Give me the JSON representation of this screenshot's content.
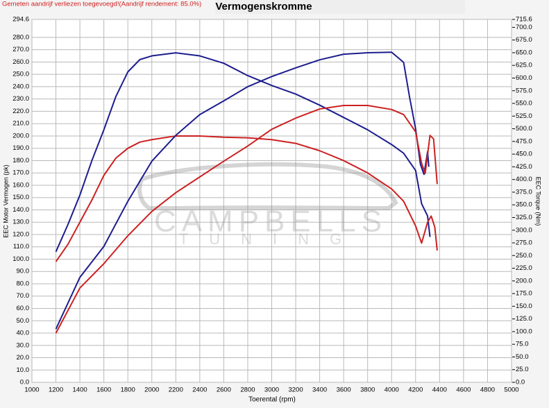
{
  "chart_data": {
    "type": "line",
    "title": "Vermogenskromme",
    "notice": "Gemeten aandrijf verliezen toegevoegd!(Aandrijf rendement: 85.0%)",
    "x_label": "Toerental (rpm)",
    "y_label": "EEC Motor Vermogen (pk)",
    "y2_label": "EEC Torque (Nm)",
    "watermark": [
      "CAMPBELLS",
      "TUNING"
    ],
    "xlim": [
      1000,
      5000
    ],
    "xticks": [
      1000,
      1200,
      1400,
      1600,
      1800,
      2000,
      2200,
      2400,
      2600,
      2800,
      3000,
      3200,
      3400,
      3600,
      3800,
      4000,
      4200,
      4400,
      4600,
      4800,
      5000
    ],
    "ylim": [
      0,
      294.6
    ],
    "yticks": [
      {
        "value": 0,
        "label": "0.0"
      },
      {
        "value": 10,
        "label": "10.0"
      },
      {
        "value": 20,
        "label": "20.0"
      },
      {
        "value": 30,
        "label": "30.0"
      },
      {
        "value": 40,
        "label": "40.0"
      },
      {
        "value": 50,
        "label": "50.0"
      },
      {
        "value": 60,
        "label": "60.0"
      },
      {
        "value": 70,
        "label": "70.0"
      },
      {
        "value": 80,
        "label": "80.0"
      },
      {
        "value": 90,
        "label": "90.0"
      },
      {
        "value": 100,
        "label": "100.0"
      },
      {
        "value": 110,
        "label": "110.0"
      },
      {
        "value": 120,
        "label": "120.0"
      },
      {
        "value": 130,
        "label": "130.0"
      },
      {
        "value": 140,
        "label": "140.0"
      },
      {
        "value": 150,
        "label": "150.0"
      },
      {
        "value": 160,
        "label": "160.0"
      },
      {
        "value": 170,
        "label": "170.0"
      },
      {
        "value": 180,
        "label": "180.0"
      },
      {
        "value": 190,
        "label": "190.0"
      },
      {
        "value": 200,
        "label": "200.0"
      },
      {
        "value": 210,
        "label": "210.0"
      },
      {
        "value": 220,
        "label": "220.0"
      },
      {
        "value": 230,
        "label": "230.0"
      },
      {
        "value": 240,
        "label": "240.0"
      },
      {
        "value": 250,
        "label": "250.0"
      },
      {
        "value": 260,
        "label": "260.0"
      },
      {
        "value": 270,
        "label": "270.0"
      },
      {
        "value": 280,
        "label": "280.0"
      },
      294.6
    ],
    "y2lim": [
      0,
      715.6
    ],
    "y2ticks": [
      {
        "value": 0,
        "label": "0.0"
      },
      {
        "value": 25,
        "label": "25.0"
      },
      {
        "value": 50,
        "label": "50.0"
      },
      {
        "value": 75,
        "label": "75.0"
      },
      {
        "value": 100,
        "label": "100.0"
      },
      {
        "value": 125,
        "label": "125.0"
      },
      {
        "value": 150,
        "label": "150.0"
      },
      {
        "value": 175,
        "label": "175.0"
      },
      {
        "value": 200,
        "label": "200.0"
      },
      {
        "value": 225,
        "label": "225.0"
      },
      {
        "value": 250,
        "label": "250.0"
      },
      {
        "value": 275,
        "label": "275.0"
      },
      {
        "value": 300,
        "label": "300.0"
      },
      {
        "value": 325,
        "label": "325.0"
      },
      {
        "value": 350,
        "label": "350.0"
      },
      {
        "value": 375,
        "label": "375.0"
      },
      {
        "value": 400,
        "label": "400.0"
      },
      {
        "value": 425,
        "label": "425.0"
      },
      {
        "value": 450,
        "label": "450.0"
      },
      {
        "value": 475,
        "label": "475.0"
      },
      {
        "value": 500,
        "label": "500.0"
      },
      {
        "value": 525,
        "label": "525.0"
      },
      {
        "value": 550,
        "label": "550.0"
      },
      {
        "value": 575,
        "label": "575.0"
      },
      {
        "value": 600,
        "label": "600.0"
      },
      {
        "value": 625,
        "label": "625.0"
      },
      {
        "value": 650,
        "label": "650.0"
      },
      {
        "value": 675,
        "label": "675.0"
      },
      {
        "value": 700,
        "label": "700.0"
      },
      715.6
    ],
    "grid": true,
    "series": [
      {
        "color": "#1c1c8e",
        "axis": "y",
        "x": [
          1200,
          1300,
          1400,
          1500,
          1600,
          1700,
          1800,
          1900,
          2000,
          2200,
          2400,
          2600,
          2800,
          3000,
          3200,
          3400,
          3600,
          3800,
          4000,
          4100,
          4200,
          4250,
          4300,
          4320
        ],
        "values": [
          106,
          128,
          152,
          180,
          205,
          232,
          252,
          262,
          265,
          267.5,
          265,
          259,
          249,
          241,
          234,
          225,
          215,
          205,
          193,
          186,
          172,
          145,
          135,
          118
        ]
      },
      {
        "color": "#cc2020",
        "axis": "y",
        "x": [
          1200,
          1300,
          1400,
          1500,
          1600,
          1700,
          1800,
          1900,
          2000,
          2200,
          2400,
          2600,
          2800,
          3000,
          3200,
          3400,
          3600,
          3800,
          4000,
          4100,
          4200,
          4250,
          4300,
          4330,
          4360,
          4380
        ],
        "values": [
          98,
          112,
          130,
          148,
          168,
          182,
          190,
          195,
          197,
          200,
          200,
          199,
          198.5,
          197,
          194,
          188,
          180,
          170,
          157,
          147,
          127,
          113,
          130,
          135,
          126,
          107
        ]
      },
      {
        "color": "#1c1c8e",
        "axis": "y2",
        "x": [
          1200,
          1400,
          1600,
          1800,
          2000,
          2200,
          2400,
          2600,
          2800,
          3000,
          3200,
          3400,
          3600,
          3800,
          4000,
          4100,
          4150,
          4200,
          4240,
          4270,
          4300,
          4310
        ],
        "values": [
          105,
          207,
          268,
          357,
          436,
          487,
          528,
          555,
          583,
          603,
          620,
          636,
          647,
          650,
          651,
          631,
          562,
          500,
          430,
          410,
          455,
          425
        ]
      },
      {
        "color": "#cc2020",
        "axis": "y2",
        "x": [
          1200,
          1400,
          1600,
          1800,
          2000,
          2200,
          2400,
          2600,
          2800,
          3000,
          3200,
          3400,
          3600,
          3800,
          4000,
          4100,
          4200,
          4250,
          4280,
          4320,
          4350,
          4380
        ],
        "values": [
          97,
          186,
          234,
          289,
          337,
          374,
          405,
          436,
          466,
          499,
          521,
          539,
          546,
          546,
          538,
          528,
          494,
          432,
          412,
          487,
          480,
          391
        ]
      }
    ]
  }
}
